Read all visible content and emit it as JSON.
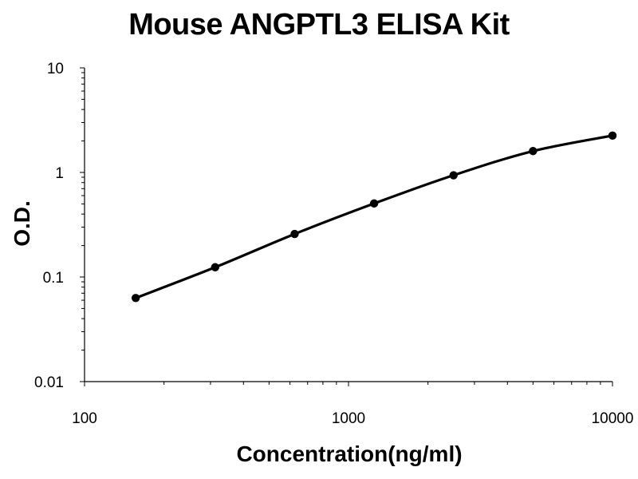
{
  "chart_data": {
    "type": "line",
    "title": "Mouse ANGPTL3 ELISA Kit",
    "xlabel": "Concentration(ng/ml)",
    "ylabel": "O.D.",
    "x_scale": "log",
    "y_scale": "log",
    "xlim": [
      100,
      10000
    ],
    "ylim": [
      0.01,
      10
    ],
    "x_ticks": [
      "100",
      "1000",
      "10000"
    ],
    "y_ticks": [
      "10",
      "1",
      "0.1",
      "0.01"
    ],
    "grid": false,
    "legend": "none",
    "series": [
      {
        "x": [
          156.25,
          312.5,
          625,
          1250,
          2500,
          5000,
          10000
        ],
        "y": [
          0.063,
          0.124,
          0.258,
          0.505,
          0.94,
          1.6,
          2.25
        ],
        "color": "#000000"
      }
    ]
  }
}
